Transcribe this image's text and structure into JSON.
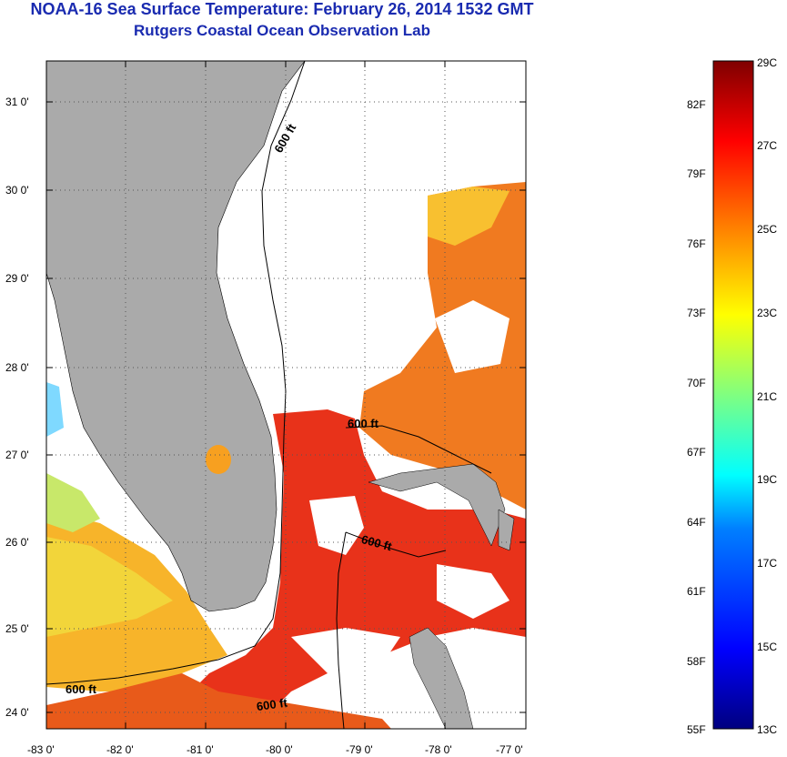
{
  "header": {
    "title": "NOAA-16 Sea Surface Temperature:  February 26, 2014 1532 GMT",
    "subtitle": "Rutgers Coastal Ocean Observation Lab"
  },
  "map": {
    "x_ticks": [
      "-83 0'",
      "-82 0'",
      "-81 0'",
      "-80 0'",
      "-79 0'",
      "-78 0'",
      "-77 0'"
    ],
    "y_ticks": [
      "31 0'",
      "30 0'",
      "29 0'",
      "28 0'",
      "27 0'",
      "26 0'",
      "25 0'",
      "24 0'"
    ],
    "contour_labels": [
      "600 ft",
      "600 ft",
      "600 ft",
      "600 ft",
      "600 ft"
    ],
    "colors": {
      "land": "#aaaaaa",
      "cloud": "#ffffff",
      "gulf_stream": "#e8321a",
      "shelf": "#f07a20"
    }
  },
  "colorbar": {
    "celsius_labels": [
      "29C",
      "27C",
      "25C",
      "23C",
      "21C",
      "19C",
      "17C",
      "15C",
      "13C"
    ],
    "fahrenheit_labels": [
      "82F",
      "79F",
      "76F",
      "73F",
      "70F",
      "67F",
      "64F",
      "61F",
      "58F",
      "55F"
    ],
    "colormap": "jet",
    "range_c": [
      13,
      29
    ]
  }
}
